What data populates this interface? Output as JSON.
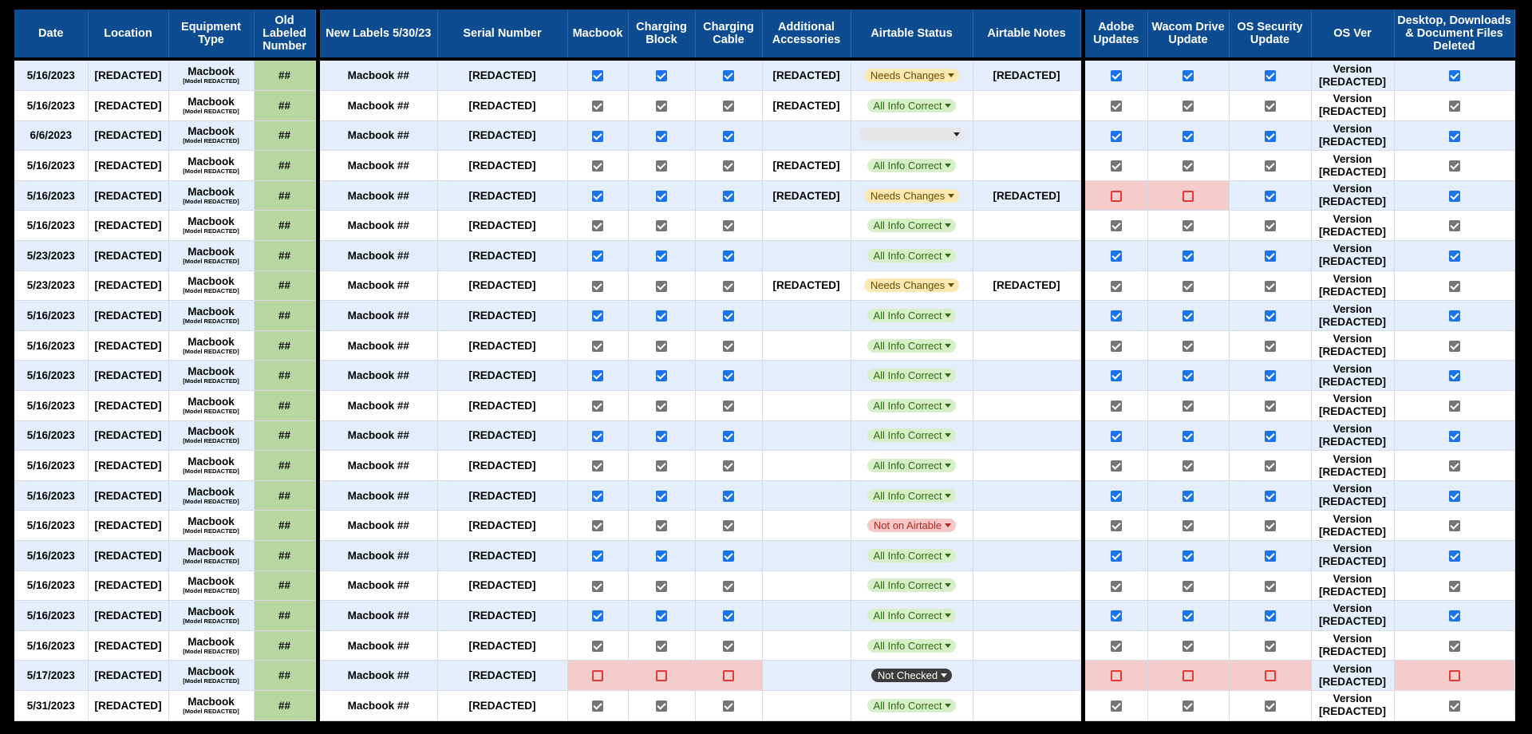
{
  "headers": [
    "Date",
    "Location",
    "Equipment Type",
    "Old Labeled Number",
    "New Labels 5/30/23",
    "Serial Number",
    "Macbook",
    "Charging Block",
    "Charging Cable",
    "Additional Accessories",
    "Airtable Status",
    "Airtable Notes",
    "Adobe Updates",
    "Wacom Drive Update",
    "OS Security Update",
    "OS Ver",
    "Desktop, Downloads & Document Files Deleted"
  ],
  "colors": {
    "header_bg": "#0d4c91",
    "row_blue": "#e3edfb",
    "old_number_bg": "#b6d8a0",
    "check_blue": "#1a73e8",
    "check_gray": "#757575",
    "red_cell": "#f4cccc"
  },
  "rows": [
    {
      "date": "5/16/2023",
      "location": "[REDACTED]",
      "equip": "Macbook",
      "model": "[Model REDACTED]",
      "old": "##",
      "newlabel": "Macbook ##",
      "serial": "[REDACTED]",
      "mac": "checked",
      "block": "checked",
      "cable": "checked",
      "accessories": "[REDACTED]",
      "status": "Needs Changes",
      "status_kind": "needs",
      "notes": "[REDACTED]",
      "adobe": "checked",
      "wacom": "checked",
      "ossec": "checked",
      "osver1": "Version",
      "osver2": "[REDACTED]",
      "deleted": "checked"
    },
    {
      "date": "5/16/2023",
      "location": "[REDACTED]",
      "equip": "Macbook",
      "model": "[Model REDACTED]",
      "old": "##",
      "newlabel": "Macbook ##",
      "serial": "[REDACTED]",
      "mac": "checked",
      "block": "checked",
      "cable": "checked",
      "accessories": "[REDACTED]",
      "status": "All Info Correct",
      "status_kind": "allinfo",
      "notes": "",
      "adobe": "checked",
      "wacom": "checked",
      "ossec": "checked",
      "osver1": "Version",
      "osver2": "[REDACTED]",
      "deleted": "checked"
    },
    {
      "date": "6/6/2023",
      "location": "[REDACTED]",
      "equip": "Macbook",
      "model": "[Model REDACTED]",
      "old": "##",
      "newlabel": "Macbook ##",
      "serial": "[REDACTED]",
      "mac": "checked",
      "block": "checked",
      "cable": "checked",
      "accessories": "",
      "status": "",
      "status_kind": "blank",
      "notes": "",
      "adobe": "checked",
      "wacom": "checked",
      "ossec": "checked",
      "osver1": "Version",
      "osver2": "[REDACTED]",
      "deleted": "checked"
    },
    {
      "date": "5/16/2023",
      "location": "[REDACTED]",
      "equip": "Macbook",
      "model": "[Model REDACTED]",
      "old": "##",
      "newlabel": "Macbook ##",
      "serial": "[REDACTED]",
      "mac": "checked",
      "block": "checked",
      "cable": "checked",
      "accessories": "[REDACTED]",
      "status": "All Info Correct",
      "status_kind": "allinfo",
      "notes": "",
      "adobe": "checked",
      "wacom": "checked",
      "ossec": "checked",
      "osver1": "Version",
      "osver2": "[REDACTED]",
      "deleted": "checked"
    },
    {
      "date": "5/16/2023",
      "location": "[REDACTED]",
      "equip": "Macbook",
      "model": "[Model REDACTED]",
      "old": "##",
      "newlabel": "Macbook ##",
      "serial": "[REDACTED]",
      "mac": "checked",
      "block": "checked",
      "cable": "checked",
      "accessories": "[REDACTED]",
      "status": "Needs Changes",
      "status_kind": "needs",
      "notes": "[REDACTED]",
      "adobe": "unchecked",
      "wacom": "unchecked",
      "ossec": "checked",
      "osver1": "Version",
      "osver2": "[REDACTED]",
      "deleted": "checked"
    },
    {
      "date": "5/16/2023",
      "location": "[REDACTED]",
      "equip": "Macbook",
      "model": "[Model REDACTED]",
      "old": "##",
      "newlabel": "Macbook ##",
      "serial": "[REDACTED]",
      "mac": "checked",
      "block": "checked",
      "cable": "checked",
      "accessories": "",
      "status": "All Info Correct",
      "status_kind": "allinfo",
      "notes": "",
      "adobe": "checked",
      "wacom": "checked",
      "ossec": "checked",
      "osver1": "Version",
      "osver2": "[REDACTED]",
      "deleted": "checked"
    },
    {
      "date": "5/23/2023",
      "location": "[REDACTED]",
      "equip": "Macbook",
      "model": "[Model REDACTED]",
      "old": "##",
      "newlabel": "Macbook ##",
      "serial": "[REDACTED]",
      "mac": "checked",
      "block": "checked",
      "cable": "checked",
      "accessories": "",
      "status": "All Info Correct",
      "status_kind": "allinfo",
      "notes": "",
      "adobe": "checked",
      "wacom": "checked",
      "ossec": "checked",
      "osver1": "Version",
      "osver2": "[REDACTED]",
      "deleted": "checked"
    },
    {
      "date": "5/23/2023",
      "location": "[REDACTED]",
      "equip": "Macbook",
      "model": "[Model REDACTED]",
      "old": "##",
      "newlabel": "Macbook ##",
      "serial": "[REDACTED]",
      "mac": "checked",
      "block": "checked",
      "cable": "checked",
      "accessories": "[REDACTED]",
      "status": "Needs Changes",
      "status_kind": "needs",
      "notes": "[REDACTED]",
      "adobe": "checked",
      "wacom": "checked",
      "ossec": "checked",
      "osver1": "Version",
      "osver2": "[REDACTED]",
      "deleted": "checked"
    },
    {
      "date": "5/16/2023",
      "location": "[REDACTED]",
      "equip": "Macbook",
      "model": "[Model REDACTED]",
      "old": "##",
      "newlabel": "Macbook ##",
      "serial": "[REDACTED]",
      "mac": "checked",
      "block": "checked",
      "cable": "checked",
      "accessories": "",
      "status": "All Info Correct",
      "status_kind": "allinfo",
      "notes": "",
      "adobe": "checked",
      "wacom": "checked",
      "ossec": "checked",
      "osver1": "Version",
      "osver2": "[REDACTED]",
      "deleted": "checked"
    },
    {
      "date": "5/16/2023",
      "location": "[REDACTED]",
      "equip": "Macbook",
      "model": "[Model REDACTED]",
      "old": "##",
      "newlabel": "Macbook ##",
      "serial": "[REDACTED]",
      "mac": "checked",
      "block": "checked",
      "cable": "checked",
      "accessories": "",
      "status": "All Info Correct",
      "status_kind": "allinfo",
      "notes": "",
      "adobe": "checked",
      "wacom": "checked",
      "ossec": "checked",
      "osver1": "Version",
      "osver2": "[REDACTED]",
      "deleted": "checked"
    },
    {
      "date": "5/16/2023",
      "location": "[REDACTED]",
      "equip": "Macbook",
      "model": "[Model REDACTED]",
      "old": "##",
      "newlabel": "Macbook ##",
      "serial": "[REDACTED]",
      "mac": "checked",
      "block": "checked",
      "cable": "checked",
      "accessories": "",
      "status": "All Info Correct",
      "status_kind": "allinfo",
      "notes": "",
      "adobe": "checked",
      "wacom": "checked",
      "ossec": "checked",
      "osver1": "Version",
      "osver2": "[REDACTED]",
      "deleted": "checked"
    },
    {
      "date": "5/16/2023",
      "location": "[REDACTED]",
      "equip": "Macbook",
      "model": "[Model REDACTED]",
      "old": "##",
      "newlabel": "Macbook ##",
      "serial": "[REDACTED]",
      "mac": "checked",
      "block": "checked",
      "cable": "checked",
      "accessories": "",
      "status": "All Info Correct",
      "status_kind": "allinfo",
      "notes": "",
      "adobe": "checked",
      "wacom": "checked",
      "ossec": "checked",
      "osver1": "Version",
      "osver2": "[REDACTED]",
      "deleted": "checked"
    },
    {
      "date": "5/16/2023",
      "location": "[REDACTED]",
      "equip": "Macbook",
      "model": "[Model REDACTED]",
      "old": "##",
      "newlabel": "Macbook ##",
      "serial": "[REDACTED]",
      "mac": "checked",
      "block": "checked",
      "cable": "checked",
      "accessories": "",
      "status": "All Info Correct",
      "status_kind": "allinfo",
      "notes": "",
      "adobe": "checked",
      "wacom": "checked",
      "ossec": "checked",
      "osver1": "Version",
      "osver2": "[REDACTED]",
      "deleted": "checked"
    },
    {
      "date": "5/16/2023",
      "location": "[REDACTED]",
      "equip": "Macbook",
      "model": "[Model REDACTED]",
      "old": "##",
      "newlabel": "Macbook ##",
      "serial": "[REDACTED]",
      "mac": "checked",
      "block": "checked",
      "cable": "checked",
      "accessories": "",
      "status": "All Info Correct",
      "status_kind": "allinfo",
      "notes": "",
      "adobe": "checked",
      "wacom": "checked",
      "ossec": "checked",
      "osver1": "Version",
      "osver2": "[REDACTED]",
      "deleted": "checked"
    },
    {
      "date": "5/16/2023",
      "location": "[REDACTED]",
      "equip": "Macbook",
      "model": "[Model REDACTED]",
      "old": "##",
      "newlabel": "Macbook ##",
      "serial": "[REDACTED]",
      "mac": "checked",
      "block": "checked",
      "cable": "checked",
      "accessories": "",
      "status": "All Info Correct",
      "status_kind": "allinfo",
      "notes": "",
      "adobe": "checked",
      "wacom": "checked",
      "ossec": "checked",
      "osver1": "Version",
      "osver2": "[REDACTED]",
      "deleted": "checked"
    },
    {
      "date": "5/16/2023",
      "location": "[REDACTED]",
      "equip": "Macbook",
      "model": "[Model REDACTED]",
      "old": "##",
      "newlabel": "Macbook ##",
      "serial": "[REDACTED]",
      "mac": "checked",
      "block": "checked",
      "cable": "checked",
      "accessories": "",
      "status": "Not on Airtable",
      "status_kind": "noton",
      "notes": "",
      "adobe": "checked",
      "wacom": "checked",
      "ossec": "checked",
      "osver1": "Version",
      "osver2": "[REDACTED]",
      "deleted": "checked"
    },
    {
      "date": "5/16/2023",
      "location": "[REDACTED]",
      "equip": "Macbook",
      "model": "[Model REDACTED]",
      "old": "##",
      "newlabel": "Macbook ##",
      "serial": "[REDACTED]",
      "mac": "checked",
      "block": "checked",
      "cable": "checked",
      "accessories": "",
      "status": "All Info Correct",
      "status_kind": "allinfo",
      "notes": "",
      "adobe": "checked",
      "wacom": "checked",
      "ossec": "checked",
      "osver1": "Version",
      "osver2": "[REDACTED]",
      "deleted": "checked"
    },
    {
      "date": "5/16/2023",
      "location": "[REDACTED]",
      "equip": "Macbook",
      "model": "[Model REDACTED]",
      "old": "##",
      "newlabel": "Macbook ##",
      "serial": "[REDACTED]",
      "mac": "checked",
      "block": "checked",
      "cable": "checked",
      "accessories": "",
      "status": "All Info Correct",
      "status_kind": "allinfo",
      "notes": "",
      "adobe": "checked",
      "wacom": "checked",
      "ossec": "checked",
      "osver1": "Version",
      "osver2": "[REDACTED]",
      "deleted": "checked"
    },
    {
      "date": "5/16/2023",
      "location": "[REDACTED]",
      "equip": "Macbook",
      "model": "[Model REDACTED]",
      "old": "##",
      "newlabel": "Macbook ##",
      "serial": "[REDACTED]",
      "mac": "checked",
      "block": "checked",
      "cable": "checked",
      "accessories": "",
      "status": "All Info Correct",
      "status_kind": "allinfo",
      "notes": "",
      "adobe": "checked",
      "wacom": "checked",
      "ossec": "checked",
      "osver1": "Version",
      "osver2": "[REDACTED]",
      "deleted": "checked"
    },
    {
      "date": "5/16/2023",
      "location": "[REDACTED]",
      "equip": "Macbook",
      "model": "[Model REDACTED]",
      "old": "##",
      "newlabel": "Macbook ##",
      "serial": "[REDACTED]",
      "mac": "checked",
      "block": "checked",
      "cable": "checked",
      "accessories": "",
      "status": "All Info Correct",
      "status_kind": "allinfo",
      "notes": "",
      "adobe": "checked",
      "wacom": "checked",
      "ossec": "checked",
      "osver1": "Version",
      "osver2": "[REDACTED]",
      "deleted": "checked"
    },
    {
      "date": "5/17/2023",
      "location": "[REDACTED]",
      "equip": "Macbook",
      "model": "[Model REDACTED]",
      "old": "##",
      "newlabel": "Macbook ##",
      "serial": "[REDACTED]",
      "mac": "unchecked",
      "block": "unchecked",
      "cable": "unchecked",
      "accessories": "",
      "status": "Not Checked",
      "status_kind": "notchecked",
      "notes": "",
      "adobe": "unchecked",
      "wacom": "unchecked",
      "ossec": "unchecked",
      "osver1": "Version",
      "osver2": "[REDACTED]",
      "deleted": "unchecked"
    },
    {
      "date": "5/31/2023",
      "location": "[REDACTED]",
      "equip": "Macbook",
      "model": "[Model REDACTED]",
      "old": "##",
      "newlabel": "Macbook ##",
      "serial": "[REDACTED]",
      "mac": "checked",
      "block": "checked",
      "cable": "checked",
      "accessories": "",
      "status": "All Info Correct",
      "status_kind": "allinfo",
      "notes": "",
      "adobe": "checked",
      "wacom": "checked",
      "ossec": "checked",
      "osver1": "Version",
      "osver2": "[REDACTED]",
      "deleted": "checked"
    }
  ]
}
